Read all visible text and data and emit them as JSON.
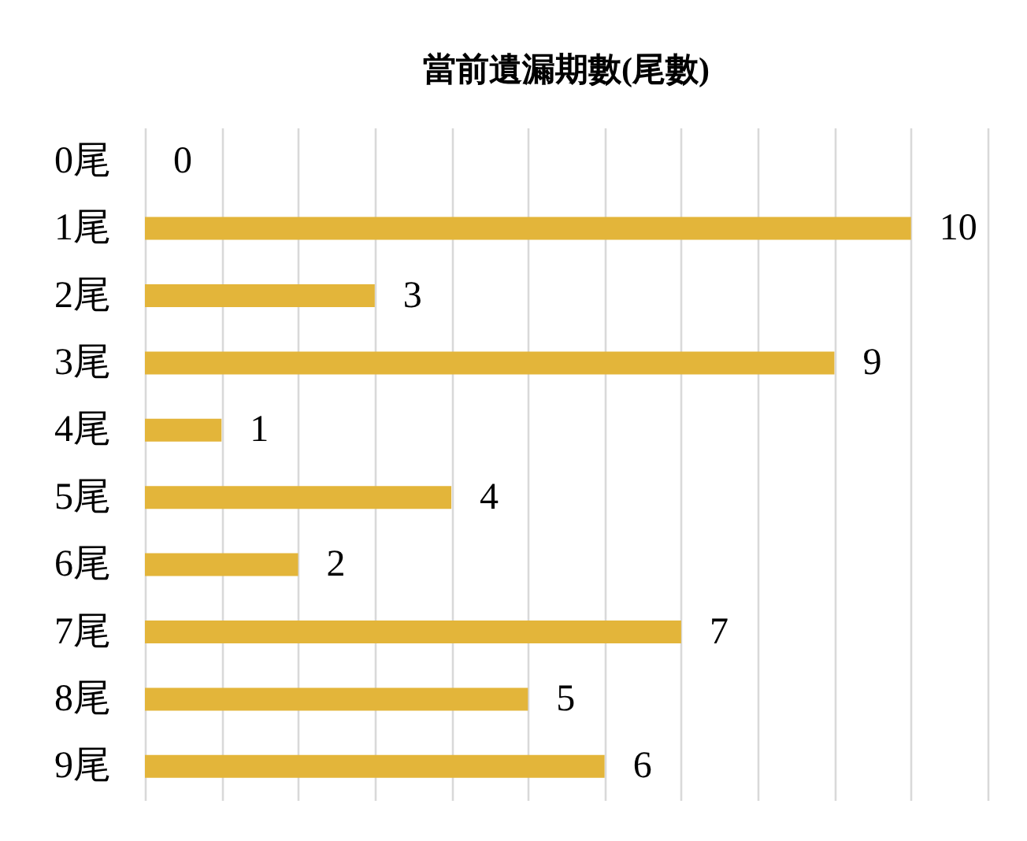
{
  "chart_data": {
    "type": "bar",
    "orientation": "horizontal",
    "title": "當前遺漏期數(尾數)",
    "categories": [
      "0尾",
      "1尾",
      "2尾",
      "3尾",
      "4尾",
      "5尾",
      "6尾",
      "7尾",
      "8尾",
      "9尾"
    ],
    "values": [
      0,
      10,
      3,
      9,
      1,
      4,
      2,
      7,
      5,
      6
    ],
    "color": "#e3b53a",
    "xlim": [
      0,
      11
    ],
    "xticks": [
      {
        "value": 0,
        "label": null
      },
      {
        "value": 1,
        "label": null
      },
      {
        "value": 2,
        "label": null
      },
      {
        "value": 3,
        "label": null
      },
      {
        "value": 4,
        "label": null
      },
      {
        "value": 5,
        "label": null
      },
      {
        "value": 6,
        "label": null
      },
      {
        "value": 7,
        "label": null
      },
      {
        "value": 8,
        "label": null
      },
      {
        "value": 9,
        "label": null
      },
      {
        "value": 10,
        "label": null
      },
      {
        "value": 11,
        "label": null
      }
    ],
    "tick_labels": "y",
    "grid": "x",
    "data_labels": true
  }
}
